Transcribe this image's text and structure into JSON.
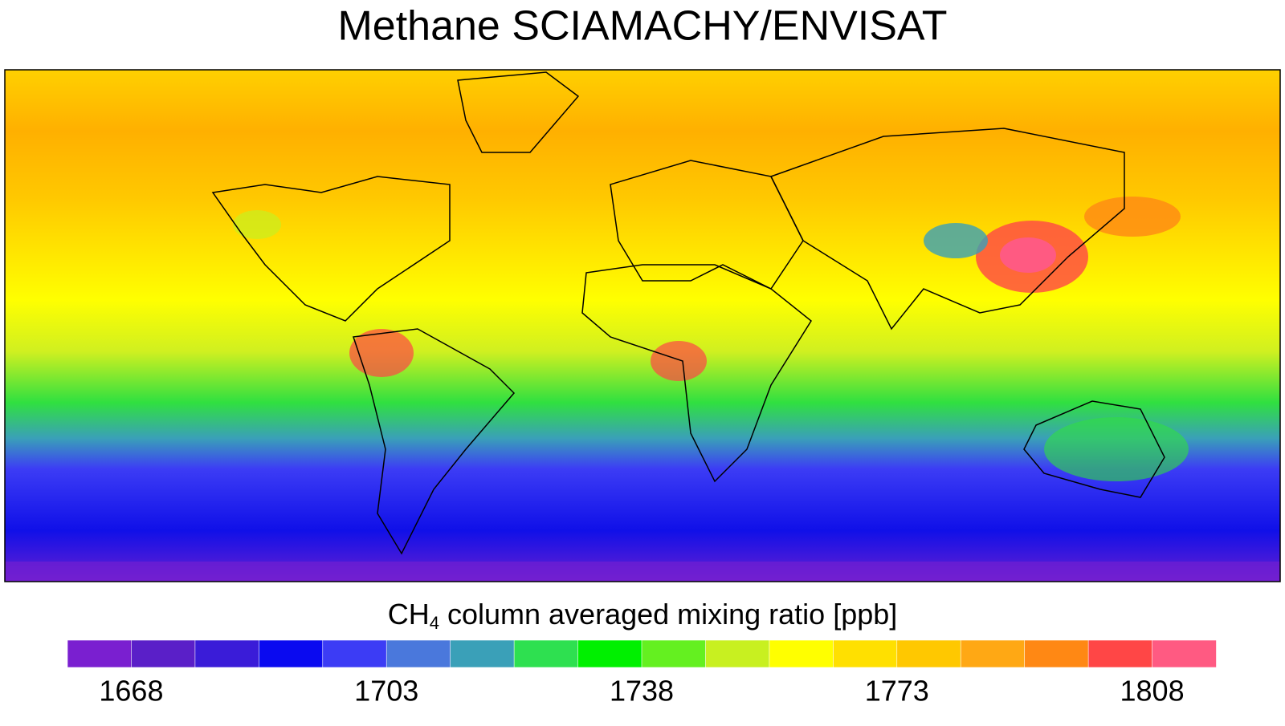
{
  "chart_data": {
    "type": "map",
    "title": "Methane SCIAMACHY/ENVISAT",
    "colorbar": {
      "label": {
        "main": "CH",
        "subscript": "4",
        "rest": " column averaged mixing ratio [ppb]"
      },
      "lim": [
        1659.25,
        1816.75
      ],
      "ticks": [
        1668,
        1703,
        1738,
        1773,
        1808
      ],
      "colors": [
        "#7a1fd0",
        "#5a1fc8",
        "#3a1cd8",
        "#0a0af0",
        "#3c3cf5",
        "#4a78dc",
        "#3aa0b8",
        "#2ee050",
        "#00f000",
        "#64f020",
        "#c8f020",
        "#ffff00",
        "#ffe000",
        "#ffc800",
        "#ffa814",
        "#ff8814",
        "#ff4646",
        "#ff5a82"
      ]
    }
  }
}
